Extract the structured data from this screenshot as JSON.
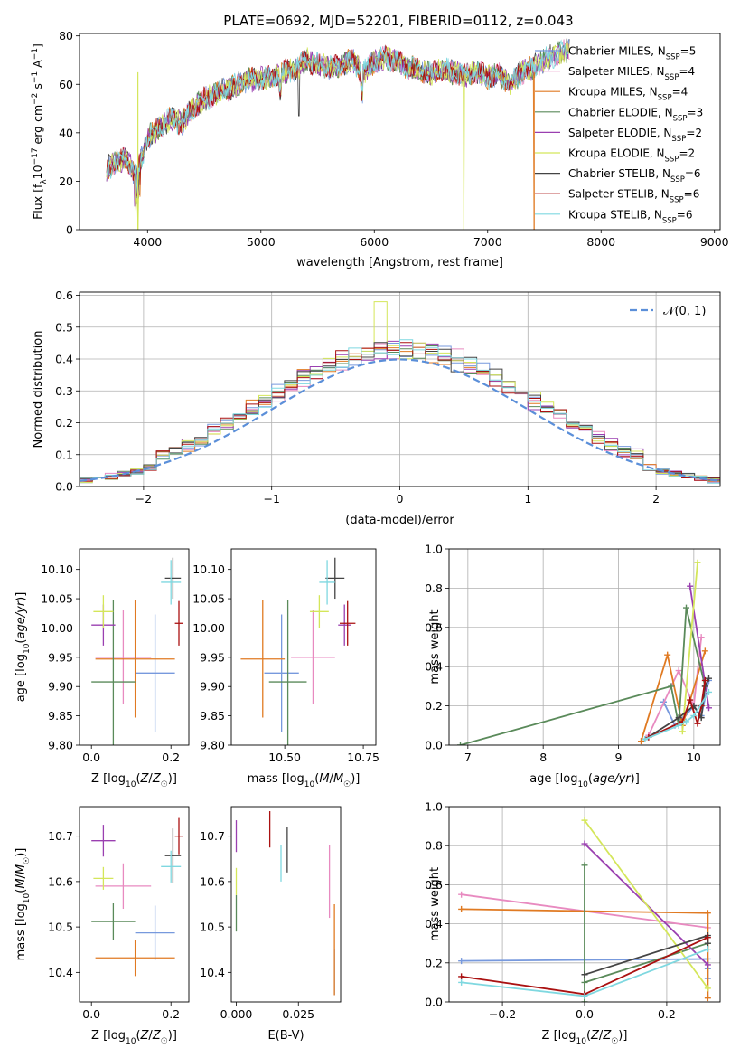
{
  "figure": {
    "title": "PLATE=0692, MJD=52201, FIBERID=0112, z=0.043"
  },
  "models": [
    {
      "name": "Chabrier MILES",
      "nssp": "5",
      "color": "#7799dd"
    },
    {
      "name": "Salpeter MILES",
      "nssp": "4",
      "color": "#e88ac0"
    },
    {
      "name": "Kroupa MILES",
      "nssp": "4",
      "color": "#e07a22"
    },
    {
      "name": "Chabrier ELODIE",
      "nssp": "3",
      "color": "#5a8a5a"
    },
    {
      "name": "Salpeter ELODIE",
      "nssp": "2",
      "color": "#9a3fb0"
    },
    {
      "name": "Kroupa ELODIE",
      "nssp": "2",
      "color": "#d4e65a"
    },
    {
      "name": "Chabrier STELIB",
      "nssp": "6",
      "color": "#444444"
    },
    {
      "name": "Salpeter STELIB",
      "nssp": "6",
      "color": "#aa1111"
    },
    {
      "name": "Kroupa STELIB",
      "nssp": "6",
      "color": "#7fd8e0"
    }
  ],
  "chart_data": [
    {
      "id": "spectrum",
      "type": "line",
      "xlabel": "wavelength [Angstrom, rest frame]",
      "ylabel": "Flux [f_λ 10^-17 erg cm^-2 s^-1 A^-1]",
      "xlim": [
        3400,
        9050
      ],
      "ylim": [
        0,
        81
      ],
      "xticks": [
        4000,
        5000,
        6000,
        7000,
        8000,
        9000
      ],
      "yticks": [
        0,
        20,
        40,
        60,
        80
      ],
      "x": [
        3600,
        3700,
        3800,
        3900,
        4000,
        4100,
        4200,
        4300,
        4400,
        4500,
        4600,
        4700,
        4800,
        4900,
        5000,
        5100,
        5200,
        5300,
        5400,
        5500,
        5600,
        5700,
        5800,
        5900,
        6000,
        6100,
        6200,
        6300,
        6400,
        6500,
        6600,
        6700,
        6800,
        6900,
        7000,
        7100,
        7200,
        7300,
        7400,
        7500,
        7600,
        7700
      ],
      "y": [
        24,
        27,
        30,
        22,
        38,
        42,
        46,
        44,
        50,
        54,
        56,
        58,
        60,
        62,
        62,
        63,
        65,
        66,
        70,
        68,
        67,
        68,
        70,
        65,
        69,
        71,
        70,
        67,
        66,
        64,
        66,
        65,
        64,
        65,
        63,
        64,
        60,
        65,
        67,
        70,
        72,
        74
      ],
      "dropouts": [
        {
          "model": 5,
          "x": 3915
        },
        {
          "model": 5,
          "x": 6790
        },
        {
          "model": 2,
          "x": 7410
        }
      ],
      "grid": false,
      "legend": "top-right"
    },
    {
      "id": "residuals",
      "type": "histogram",
      "xlabel": "(data-model)/error",
      "ylabel": "Normed distribution",
      "xlim": [
        -2.5,
        2.5
      ],
      "ylim": [
        0,
        0.61
      ],
      "xticks": [
        -2,
        -1,
        0,
        1,
        2
      ],
      "yticks": [
        0,
        0.1,
        0.2,
        0.3,
        0.4,
        0.5,
        0.6
      ],
      "bin_width": 0.1,
      "reference_label": "𝒩(0, 1)",
      "grid": true,
      "legend": "top-right"
    },
    {
      "id": "age-vs-Z",
      "type": "scatter",
      "xlabel": "Z [log10(Z/Z☉)]",
      "ylabel": "age [log10(age/yr)]",
      "xlim": [
        -0.03,
        0.245
      ],
      "ylim": [
        9.8,
        10.135
      ],
      "xticks": [
        0.0,
        0.2
      ],
      "yticks": [
        9.8,
        9.85,
        9.9,
        9.95,
        10.0,
        10.05,
        10.1
      ],
      "points": [
        {
          "model": 0,
          "x": 0.16,
          "y": 9.923,
          "xerr": 0.05,
          "yerr": 0.1
        },
        {
          "model": 1,
          "x": 0.08,
          "y": 9.95,
          "xerr": 0.07,
          "yerr": 0.08
        },
        {
          "model": 2,
          "x": 0.11,
          "y": 9.947,
          "xerr": 0.1,
          "yerr": 0.1
        },
        {
          "model": 3,
          "x": 0.055,
          "y": 9.908,
          "xerr": 0.055,
          "yerr": 0.14
        },
        {
          "model": 4,
          "x": 0.03,
          "y": 10.005,
          "xerr": 0.03,
          "yerr": 0.035
        },
        {
          "model": 5,
          "x": 0.03,
          "y": 10.028,
          "xerr": 0.025,
          "yerr": 0.028
        },
        {
          "model": 6,
          "x": 0.205,
          "y": 10.085,
          "xerr": 0.02,
          "yerr": 0.035
        },
        {
          "model": 7,
          "x": 0.22,
          "y": 10.008,
          "xerr": 0.01,
          "yerr": 0.038
        },
        {
          "model": 8,
          "x": 0.2,
          "y": 10.078,
          "xerr": 0.025,
          "yerr": 0.038
        }
      ]
    },
    {
      "id": "age-vs-mass",
      "type": "scatter",
      "xlabel": "mass [log10(M/M☉)]",
      "ylabel": "",
      "xlim": [
        10.33,
        10.79
      ],
      "ylim": [
        9.8,
        10.135
      ],
      "xticks": [
        10.5,
        10.75
      ],
      "tick_labels": [
        "10.50",
        "10.75"
      ],
      "yticks": [
        9.8,
        9.85,
        9.9,
        9.95,
        10.0,
        10.05,
        10.1
      ],
      "points": [
        {
          "model": 0,
          "x": 10.49,
          "y": 9.923,
          "xerr": 0.055,
          "yerr": 0.1
        },
        {
          "model": 1,
          "x": 10.59,
          "y": 9.95,
          "xerr": 0.07,
          "yerr": 0.08
        },
        {
          "model": 2,
          "x": 10.43,
          "y": 9.947,
          "xerr": 0.07,
          "yerr": 0.1
        },
        {
          "model": 3,
          "x": 10.51,
          "y": 9.908,
          "xerr": 0.06,
          "yerr": 0.14
        },
        {
          "model": 4,
          "x": 10.69,
          "y": 10.005,
          "xerr": 0.02,
          "yerr": 0.035
        },
        {
          "model": 5,
          "x": 10.61,
          "y": 10.028,
          "xerr": 0.03,
          "yerr": 0.028
        },
        {
          "model": 6,
          "x": 10.66,
          "y": 10.085,
          "xerr": 0.03,
          "yerr": 0.035
        },
        {
          "model": 7,
          "x": 10.7,
          "y": 10.008,
          "xerr": 0.025,
          "yerr": 0.038
        },
        {
          "model": 8,
          "x": 10.635,
          "y": 10.078,
          "xerr": 0.025,
          "yerr": 0.038
        }
      ]
    },
    {
      "id": "weight-vs-age",
      "type": "line",
      "xlabel": "age [log10(age/yr)]",
      "ylabel": "mass weight",
      "xlim": [
        6.75,
        10.35
      ],
      "ylim": [
        0,
        1.0
      ],
      "xticks": [
        7,
        8,
        9,
        10
      ],
      "yticks": [
        0.0,
        0.2,
        0.4,
        0.6,
        0.8,
        1.0
      ],
      "grid": true,
      "series": [
        {
          "model": 0,
          "x": [
            9.6,
            9.75,
            9.85,
            10.0,
            10.1,
            10.2
          ],
          "y": [
            0.22,
            0.1,
            0.13,
            0.2,
            0.15,
            0.33
          ]
        },
        {
          "model": 1,
          "x": [
            9.4,
            9.8,
            10.0,
            10.1
          ],
          "y": [
            0.05,
            0.38,
            0.2,
            0.55
          ]
        },
        {
          "model": 2,
          "x": [
            9.3,
            9.65,
            9.85,
            10.15
          ],
          "y": [
            0.02,
            0.46,
            0.1,
            0.48
          ]
        },
        {
          "model": 3,
          "x": [
            6.9,
            9.7,
            9.8,
            9.9,
            10.15
          ],
          "y": [
            0.0,
            0.3,
            0.1,
            0.7,
            0.3
          ]
        },
        {
          "model": 4,
          "x": [
            9.95,
            10.2
          ],
          "y": [
            0.81,
            0.19
          ]
        },
        {
          "model": 5,
          "x": [
            9.85,
            10.05
          ],
          "y": [
            0.07,
            0.93
          ]
        },
        {
          "model": 6,
          "x": [
            9.35,
            9.8,
            10.0,
            10.1,
            10.15,
            10.2
          ],
          "y": [
            0.03,
            0.14,
            0.2,
            0.14,
            0.3,
            0.34
          ]
        },
        {
          "model": 7,
          "x": [
            9.4,
            9.85,
            9.95,
            10.05,
            10.1,
            10.15
          ],
          "y": [
            0.04,
            0.12,
            0.23,
            0.11,
            0.2,
            0.33
          ]
        },
        {
          "model": 8,
          "x": [
            9.35,
            9.8,
            9.9,
            10.0,
            10.2
          ],
          "y": [
            0.03,
            0.1,
            0.12,
            0.15,
            0.27
          ]
        }
      ]
    },
    {
      "id": "mass-vs-Z",
      "type": "scatter",
      "xlabel": "Z [log10(Z/Z☉)]",
      "ylabel": "mass [log10(M/M☉)]",
      "xlim": [
        -0.03,
        0.245
      ],
      "ylim": [
        10.335,
        10.765
      ],
      "xticks": [
        0.0,
        0.2
      ],
      "yticks": [
        10.4,
        10.5,
        10.6,
        10.7
      ],
      "points": [
        {
          "model": 0,
          "x": 0.16,
          "y": 10.487,
          "xerr": 0.05,
          "yerr": 0.06
        },
        {
          "model": 1,
          "x": 0.08,
          "y": 10.59,
          "xerr": 0.07,
          "yerr": 0.05
        },
        {
          "model": 2,
          "x": 0.11,
          "y": 10.432,
          "xerr": 0.1,
          "yerr": 0.04
        },
        {
          "model": 3,
          "x": 0.055,
          "y": 10.512,
          "xerr": 0.055,
          "yerr": 0.04
        },
        {
          "model": 4,
          "x": 0.03,
          "y": 10.69,
          "xerr": 0.03,
          "yerr": 0.035
        },
        {
          "model": 5,
          "x": 0.03,
          "y": 10.607,
          "xerr": 0.025,
          "yerr": 0.025
        },
        {
          "model": 6,
          "x": 0.205,
          "y": 10.657,
          "xerr": 0.02,
          "yerr": 0.06
        },
        {
          "model": 7,
          "x": 0.22,
          "y": 10.7,
          "xerr": 0.01,
          "yerr": 0.04
        },
        {
          "model": 8,
          "x": 0.2,
          "y": 10.633,
          "xerr": 0.025,
          "yerr": 0.035
        }
      ]
    },
    {
      "id": "mass-vs-ebv",
      "type": "scatter",
      "xlabel": "E(B-V)",
      "ylabel": "",
      "xlim": [
        -0.002,
        0.042
      ],
      "ylim": [
        10.335,
        10.765
      ],
      "xticks": [
        0.0,
        0.025
      ],
      "tick_labels": [
        "0.000",
        "0.025"
      ],
      "yticks": [
        10.4,
        10.5,
        10.6,
        10.7
      ],
      "points": [
        {
          "model": 0,
          "x": 0.0395,
          "y": 10.4,
          "yerr": 0.05
        },
        {
          "model": 1,
          "x": 0.0375,
          "y": 10.6,
          "yerr": 0.08
        },
        {
          "model": 2,
          "x": 0.0395,
          "y": 10.45,
          "yerr": 0.1
        },
        {
          "model": 3,
          "x": 0.0,
          "y": 10.53,
          "yerr": 0.04
        },
        {
          "model": 4,
          "x": 0.0,
          "y": 10.7,
          "yerr": 0.035
        },
        {
          "model": 5,
          "x": 0.0,
          "y": 10.6,
          "yerr": 0.03
        },
        {
          "model": 6,
          "x": 0.0205,
          "y": 10.67,
          "yerr": 0.05
        },
        {
          "model": 7,
          "x": 0.0135,
          "y": 10.715,
          "yerr": 0.04
        },
        {
          "model": 8,
          "x": 0.018,
          "y": 10.64,
          "yerr": 0.04
        }
      ]
    },
    {
      "id": "weight-vs-Z",
      "type": "line",
      "xlabel": "Z [log10(Z/Z☉)]",
      "ylabel": "mass weight",
      "xlim": [
        -0.33,
        0.33
      ],
      "ylim": [
        0,
        1.0
      ],
      "xticks": [
        -0.2,
        0.0,
        0.2
      ],
      "tick_labels": [
        "−0.2",
        "0.0",
        "0.2"
      ],
      "yticks": [
        0.0,
        0.2,
        0.4,
        0.6,
        0.8,
        1.0
      ],
      "grid": true,
      "series": [
        {
          "model": 0,
          "x": [
            -0.3,
            0.3,
            0.3,
            0.3
          ],
          "y": [
            0.21,
            0.22,
            0.17,
            0.12
          ]
        },
        {
          "model": 1,
          "x": [
            -0.3,
            0.3
          ],
          "y": [
            0.55,
            0.38
          ]
        },
        {
          "model": 2,
          "x": [
            -0.3,
            0.3,
            0.3
          ],
          "y": [
            0.475,
            0.455,
            0.02
          ]
        },
        {
          "model": 3,
          "x": [
            0.0,
            0.0,
            0.0,
            0.3
          ],
          "y": [
            0.0,
            0.7,
            0.1,
            0.3
          ]
        },
        {
          "model": 4,
          "x": [
            0.0,
            0.3
          ],
          "y": [
            0.81,
            0.19
          ]
        },
        {
          "model": 5,
          "x": [
            0.0,
            0.3
          ],
          "y": [
            0.93,
            0.07
          ]
        },
        {
          "model": 6,
          "x": [
            0.0,
            0.3,
            0.3
          ],
          "y": [
            0.14,
            0.34,
            0.3
          ]
        },
        {
          "model": 7,
          "x": [
            -0.3,
            0.0,
            0.3
          ],
          "y": [
            0.13,
            0.04,
            0.33
          ]
        },
        {
          "model": 8,
          "x": [
            -0.3,
            0.0,
            0.3
          ],
          "y": [
            0.1,
            0.03,
            0.27
          ]
        }
      ]
    }
  ]
}
